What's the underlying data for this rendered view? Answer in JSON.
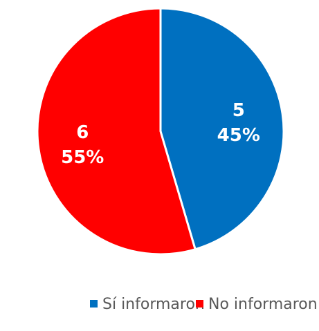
{
  "chart_data": {
    "type": "pie",
    "categories": [
      "Sí informaron",
      "No informaron"
    ],
    "values": [
      5,
      6
    ],
    "percent_labels": [
      "45%",
      "55%"
    ],
    "colors": [
      "#0070c0",
      "#ff0000"
    ],
    "legend": "bottom"
  }
}
